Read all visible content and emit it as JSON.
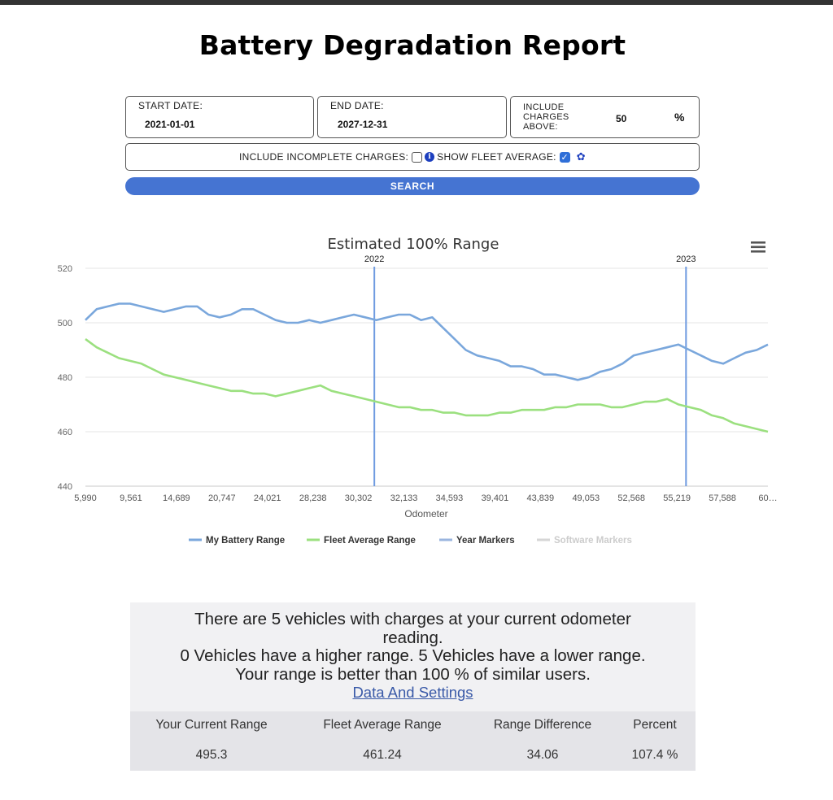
{
  "page": {
    "title": "Battery Degradation Report"
  },
  "filters": {
    "start_date_label": "START DATE:",
    "start_date_value": "2021-01-01",
    "end_date_label": "END DATE:",
    "end_date_value": "2027-12-31",
    "include_above_label_1": "INCLUDE",
    "include_above_label_2": "CHARGES",
    "include_above_label_3": "ABOVE:",
    "include_above_value": "50",
    "include_above_unit": "%",
    "incomplete_label": "INCLUDE INCOMPLETE CHARGES:",
    "incomplete_checked": false,
    "fleet_label": "SHOW FLEET AVERAGE:",
    "fleet_checked": true,
    "search_label": "SEARCH"
  },
  "chart_data": {
    "type": "line",
    "title": "Estimated 100% Range",
    "xlabel": "Odometer",
    "ylabel": "",
    "ylim": [
      440,
      520
    ],
    "yticks": [
      520,
      500,
      480,
      460,
      440
    ],
    "xtick_labels": [
      "5,990",
      "9,561",
      "14,689",
      "20,747",
      "24,021",
      "28,238",
      "30,302",
      "32,133",
      "34,593",
      "39,401",
      "43,839",
      "49,053",
      "52,568",
      "55,219",
      "57,588",
      "60…"
    ],
    "year_markers": [
      {
        "label": "2022",
        "at_index": 6.35
      },
      {
        "label": "2023",
        "at_index": 13.2
      }
    ],
    "grid": true,
    "legend_position": "bottom",
    "series": [
      {
        "name": "My Battery Range",
        "color": "#7aa7dc",
        "values": [
          501,
          505,
          506,
          507,
          507,
          506,
          505,
          504,
          505,
          506,
          506,
          503,
          502,
          503,
          505,
          505,
          503,
          501,
          500,
          500,
          501,
          500,
          501,
          502,
          503,
          502,
          501,
          502,
          503,
          503,
          501,
          502,
          498,
          494,
          490,
          488,
          487,
          486,
          484,
          484,
          483,
          481,
          481,
          480,
          479,
          480,
          482,
          483,
          485,
          488,
          489,
          490,
          491,
          492,
          490,
          488,
          486,
          485,
          487,
          489,
          490,
          492
        ]
      },
      {
        "name": "Fleet Average Range",
        "color": "#9be07f",
        "values": [
          494,
          491,
          489,
          487,
          486,
          485,
          483,
          481,
          480,
          479,
          478,
          477,
          476,
          475,
          475,
          474,
          474,
          473,
          474,
          475,
          476,
          477,
          475,
          474,
          473,
          472,
          471,
          470,
          469,
          469,
          468,
          468,
          467,
          467,
          466,
          466,
          466,
          467,
          467,
          468,
          468,
          468,
          469,
          469,
          470,
          470,
          470,
          469,
          469,
          470,
          471,
          471,
          472,
          470,
          469,
          468,
          466,
          465,
          463,
          462,
          461,
          460
        ]
      },
      {
        "name": "Year Markers",
        "color": "#9ab5df",
        "values": []
      },
      {
        "name": "Software Markers",
        "color": "#d6d6d6",
        "values": []
      }
    ]
  },
  "chart_ui": {
    "menu_icon": "hamburger-menu-icon"
  },
  "stats": {
    "line1": "There are 5 vehicles with charges at your current odometer",
    "line2": "reading.",
    "line3": "0 Vehicles have a higher range. 5 Vehicles have a lower range.",
    "line4": "Your range is better than 100 % of similar users.",
    "link": "Data And Settings",
    "headers": [
      "Your Current Range",
      "Fleet Average Range",
      "Range Difference",
      "Percent"
    ],
    "values": [
      "495.3",
      "461.24",
      "34.06",
      "107.4 %"
    ]
  }
}
